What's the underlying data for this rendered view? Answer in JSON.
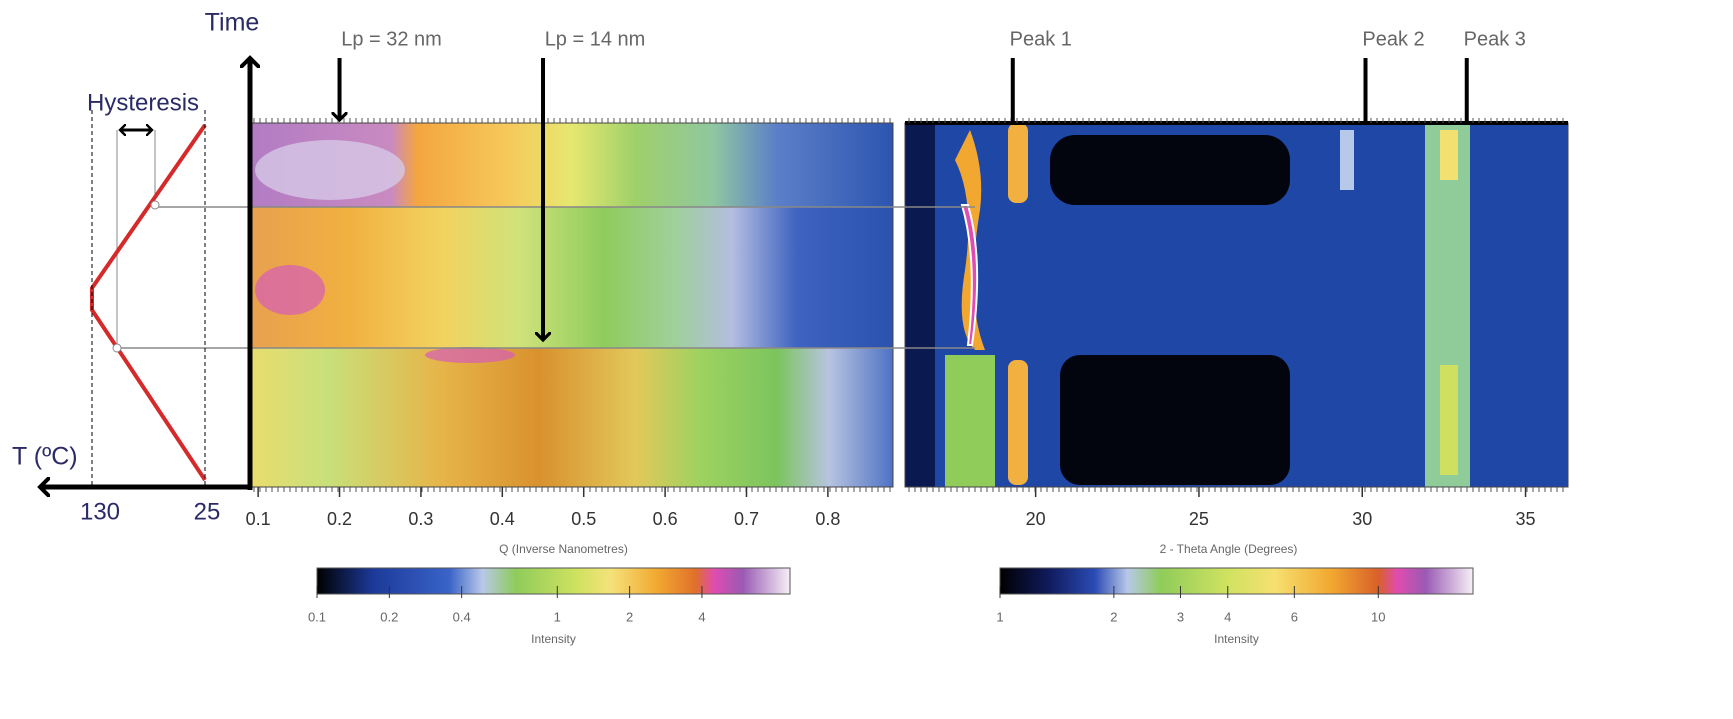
{
  "chart_data": [
    {
      "type": "heatmap",
      "x_label": "Q (Inverse Nanometres)",
      "xlim": [
        0.09,
        0.88
      ],
      "xticks": [
        0.1,
        0.2,
        0.3,
        0.4,
        0.5,
        0.6,
        0.7,
        0.8
      ],
      "colorbar": {
        "label": "Intensity",
        "log": true,
        "lim": [
          0.1,
          9.3
        ],
        "ticks": [
          0.1,
          0.2,
          0.4,
          1,
          2,
          4
        ]
      },
      "annotations": [
        {
          "text": "Lp = 32 nm",
          "x": 0.2
        },
        {
          "text": "Lp = 14 nm",
          "x": 0.45
        }
      ]
    },
    {
      "type": "heatmap",
      "x_label": "2 - Theta Angle (Degrees)",
      "xlim": [
        16,
        36.3
      ],
      "xticks": [
        20,
        25,
        30,
        35
      ],
      "colorbar": {
        "label": "Intensity",
        "log": true,
        "lim": [
          1,
          17.8
        ],
        "ticks": [
          1,
          2,
          3,
          4,
          6,
          10
        ]
      },
      "annotations": [
        {
          "text": "Peak 1",
          "x": 19.3
        },
        {
          "text": "Peak 2",
          "x": 30.1
        },
        {
          "text": "Peak 3",
          "x": 33.2
        }
      ]
    }
  ],
  "temperature_profile": {
    "y_label": "Time",
    "x_label": "T (ºC)",
    "ticks": [
      130,
      25
    ],
    "annotation": "Hysteresis"
  }
}
